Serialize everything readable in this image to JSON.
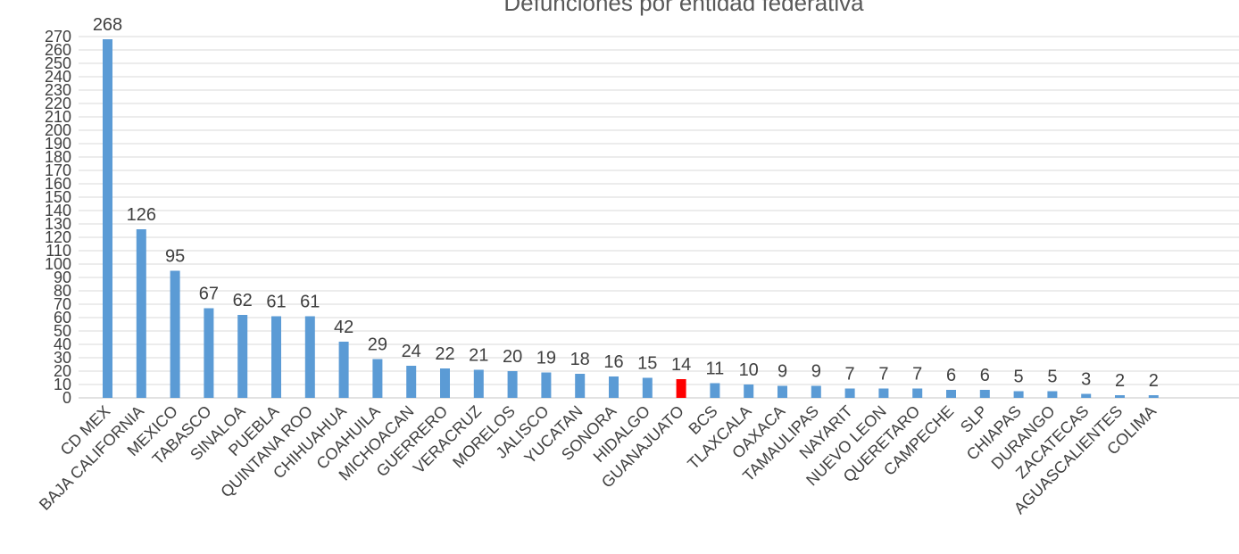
{
  "chart_data": {
    "type": "bar",
    "title": "Defunciones por entidad federativa",
    "xlabel": "",
    "ylabel": "",
    "ylim": [
      0,
      270
    ],
    "ytick_step": 10,
    "grid": true,
    "legend": "none",
    "colors": {
      "bar": "#5b9bd5",
      "highlight": "#ff0000",
      "grid": "#d9d9d9"
    },
    "highlight_category": "GUANAJUATO",
    "categories": [
      "CD MEX",
      "BAJA CALIFORNIA",
      "MEXICO",
      "TABASCO",
      "SINALOA",
      "PUEBLA",
      "QUINTANA ROO",
      "CHIHUAHUA",
      "COAHUILA",
      "MICHOACAN",
      "GUERRERO",
      "VERACRUZ",
      "MORELOS",
      "JALISCO",
      "YUCATAN",
      "SONORA",
      "HIDALGO",
      "GUANAJUATO",
      "BCS",
      "TLAXCALA",
      "OAXACA",
      "TAMAULIPAS",
      "NAYARIT",
      "NUEVO LEON",
      "QUERETARO",
      "CAMPECHE",
      "SLP",
      "CHIAPAS",
      "DURANGO",
      "ZACATECAS",
      "AGUASCALIENTES",
      "COLIMA"
    ],
    "values": [
      268,
      126,
      95,
      67,
      62,
      61,
      61,
      42,
      29,
      24,
      22,
      21,
      20,
      19,
      18,
      16,
      15,
      14,
      11,
      10,
      9,
      9,
      7,
      7,
      7,
      6,
      6,
      5,
      5,
      3,
      2,
      2
    ]
  }
}
